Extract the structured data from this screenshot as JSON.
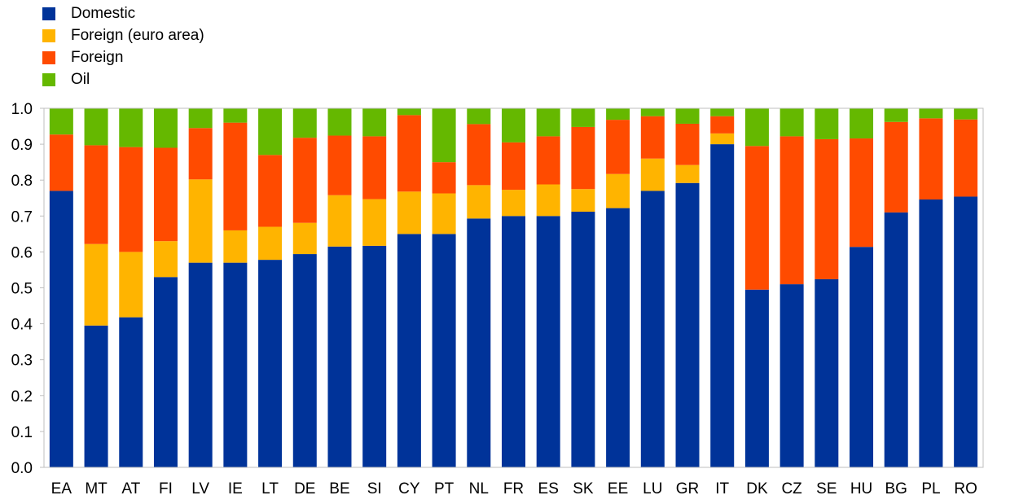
{
  "chart_data": {
    "type": "bar",
    "stacked": true,
    "legend_position": "top-left",
    "grid": false,
    "ylim": [
      0,
      1
    ],
    "yticks": [
      "0.0",
      "0.1",
      "0.2",
      "0.3",
      "0.4",
      "0.5",
      "0.6",
      "0.7",
      "0.8",
      "0.9",
      "1.0"
    ],
    "categories": [
      "EA",
      "MT",
      "AT",
      "FI",
      "LV",
      "IE",
      "LT",
      "DE",
      "BE",
      "SI",
      "CY",
      "PT",
      "NL",
      "FR",
      "ES",
      "SK",
      "EE",
      "LU",
      "GR",
      "IT",
      "DK",
      "CZ",
      "SE",
      "HU",
      "BG",
      "PL",
      "RO"
    ],
    "series": [
      {
        "name": "Domestic",
        "color": "#003399",
        "values": [
          0.77,
          0.395,
          0.418,
          0.53,
          0.57,
          0.57,
          0.578,
          0.594,
          0.615,
          0.617,
          0.65,
          0.65,
          0.693,
          0.7,
          0.7,
          0.712,
          0.722,
          0.77,
          0.792,
          0.9,
          0.495,
          0.51,
          0.524,
          0.614,
          0.71,
          0.746,
          0.754
        ]
      },
      {
        "name": "Foreign (euro area)",
        "color": "#FFB400",
        "values": [
          0.0,
          0.227,
          0.182,
          0.1,
          0.232,
          0.09,
          0.092,
          0.087,
          0.143,
          0.13,
          0.118,
          0.113,
          0.093,
          0.073,
          0.088,
          0.063,
          0.095,
          0.09,
          0.05,
          0.03,
          0.0,
          0.0,
          0.0,
          0.0,
          0.0,
          0.0,
          0.0
        ]
      },
      {
        "name": "Foreign",
        "color": "#FF4B00",
        "values": [
          0.157,
          0.275,
          0.292,
          0.26,
          0.143,
          0.3,
          0.2,
          0.237,
          0.166,
          0.175,
          0.213,
          0.087,
          0.17,
          0.132,
          0.134,
          0.173,
          0.151,
          0.118,
          0.115,
          0.048,
          0.4,
          0.412,
          0.39,
          0.302,
          0.252,
          0.226,
          0.215
        ]
      },
      {
        "name": "Oil",
        "color": "#65B800",
        "values": [
          0.073,
          0.103,
          0.108,
          0.11,
          0.055,
          0.04,
          0.13,
          0.082,
          0.076,
          0.078,
          0.019,
          0.15,
          0.044,
          0.095,
          0.078,
          0.052,
          0.032,
          0.022,
          0.043,
          0.022,
          0.105,
          0.078,
          0.086,
          0.084,
          0.038,
          0.028,
          0.031
        ]
      }
    ]
  }
}
